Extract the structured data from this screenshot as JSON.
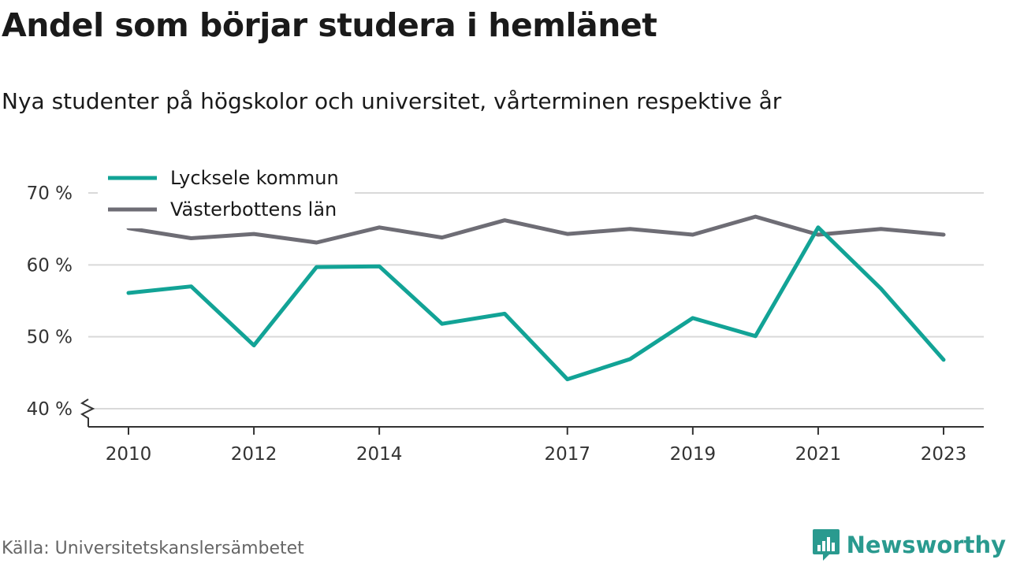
{
  "header": {
    "title": "Andel som börjar studera i hemlänet",
    "subtitle": "Nya studenter på högskolor och universitet, vårterminen respektive år"
  },
  "footer": {
    "source": "Källa: Universitetskanslersämbetet",
    "brand": "Newsworthy"
  },
  "colors": {
    "lycksele": "#12a396",
    "vasterbotten": "#6e6d75",
    "grid": "#d9d9d9",
    "axis": "#333333",
    "brand": "#2a9a8f"
  },
  "icons": {
    "brand_logo": "bar-chart-speech-bubble-icon"
  },
  "chart_data": {
    "type": "line",
    "title": "Andel som börjar studera i hemlänet",
    "subtitle": "Nya studenter på högskolor och universitet, vårterminen respektive år",
    "x": [
      2010,
      2011,
      2012,
      2013,
      2014,
      2015,
      2016,
      2017,
      2018,
      2019,
      2020,
      2021,
      2022,
      2023
    ],
    "xticks": [
      2010,
      2012,
      2014,
      2017,
      2019,
      2021,
      2023
    ],
    "xtick_labels": [
      "2010",
      "2012",
      "2014",
      "2017",
      "2019",
      "2021",
      "2023"
    ],
    "ylim": [
      40,
      70
    ],
    "yticks": [
      40,
      50,
      60,
      70
    ],
    "ytick_labels": [
      "40 %",
      "50 %",
      "60 %",
      "70 %"
    ],
    "y_axis_break": true,
    "grid": true,
    "legend_position": "top-left",
    "series": [
      {
        "name": "Lycksele kommun",
        "color": "#12a396",
        "values": [
          56.1,
          57.0,
          48.8,
          59.7,
          59.8,
          51.8,
          53.2,
          44.1,
          46.9,
          52.6,
          50.1,
          65.2,
          56.7,
          46.8
        ]
      },
      {
        "name": "Västerbottens län",
        "color": "#6e6d75",
        "values": [
          65.1,
          63.7,
          64.3,
          63.1,
          65.2,
          63.8,
          66.2,
          64.3,
          65.0,
          64.2,
          66.7,
          64.2,
          65.0,
          64.2
        ]
      }
    ]
  }
}
